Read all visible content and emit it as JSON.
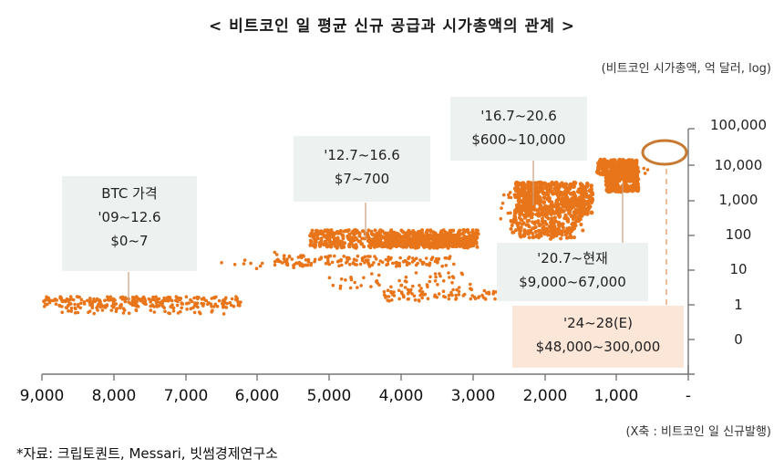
{
  "chart_data": {
    "type": "scatter",
    "title": "< 비트코인 일 평균 신규 공급과 시가총액의 관계 >",
    "ylabel": "(비트코인 시가총액, 억 달러, log)",
    "xlabel": "(X축 : 비트코인 일 신규발행)",
    "x_ticks": [
      "9,000",
      "8,000",
      "7,000",
      "6,000",
      "5,000",
      "4,000",
      "3,000",
      "2,000",
      "1,000",
      "-"
    ],
    "y_ticks": [
      "100,000",
      "10,000",
      "1,000",
      "100",
      "10",
      "1",
      "0"
    ],
    "x_range": [
      9000,
      0
    ],
    "x_reversed": true,
    "y_scale": "log",
    "y_axis_position": "right",
    "grid": false,
    "marker_color": "#e8751a",
    "series": [
      {
        "name": "'09~12.6",
        "x_range": [
          6300,
          9000
        ],
        "y_approx": [
          0.8,
          1.2
        ],
        "price": "$0~7"
      },
      {
        "name": "'12.7~16.6",
        "x_range": [
          3000,
          6000
        ],
        "y_approx": [
          1,
          120
        ],
        "price": "$7~700"
      },
      {
        "name": "'16.7~20.6",
        "x_range": [
          1500,
          2200
        ],
        "y_approx": [
          80,
          3000
        ],
        "price": "$600~10,000"
      },
      {
        "name": "'20.7~현재",
        "x_range": [
          700,
          1200
        ],
        "y_approx": [
          1500,
          12000
        ],
        "price": "$9,000~67,000"
      },
      {
        "name": "'24~28(E)",
        "x_range": [
          150,
          500
        ],
        "y_approx": [
          8000,
          30000
        ],
        "price": "$48,000~300,000",
        "estimated": true
      }
    ],
    "annotations": [
      {
        "lines": [
          "BTC 가격",
          "'09~12.6",
          "$0~7"
        ]
      },
      {
        "lines": [
          "'12.7~16.6",
          "$7~700"
        ]
      },
      {
        "lines": [
          "'16.7~20.6",
          "$600~10,000"
        ]
      },
      {
        "lines": [
          "'20.7~현재",
          "$9,000~67,000"
        ]
      },
      {
        "lines": [
          "'24~28(E)",
          "$48,000~300,000"
        ]
      }
    ]
  },
  "header": {
    "title": "< 비트코인 일 평균 신규 공급과 시가총액의 관계 >",
    "unit": "(비트코인 시가총액, 억 달러, log)"
  },
  "annotations": {
    "a1": {
      "l1": "BTC 가격",
      "l2": "'09~12.6",
      "l3": "$0~7"
    },
    "a2": {
      "l1": "'12.7~16.6",
      "l2": "$7~700"
    },
    "a3": {
      "l1": "'16.7~20.6",
      "l2": "$600~10,000"
    },
    "a4": {
      "l1": "'20.7~현재",
      "l2": "$9,000~67,000"
    },
    "a5": {
      "l1": "'24~28(E)",
      "l2": "$48,000~300,000"
    }
  },
  "axes": {
    "y": [
      "100,000",
      "10,000",
      "1,000",
      "100",
      "10",
      "1",
      "0"
    ],
    "x": [
      "9,000",
      "8,000",
      "7,000",
      "6,000",
      "5,000",
      "4,000",
      "3,000",
      "2,000",
      "1,000",
      "-"
    ],
    "x_label": "(X축 : 비트코인 일 신규발행)"
  },
  "footer": {
    "source": "*자료: 크립토퀀트, Messari, 빗썸경제연구소"
  }
}
